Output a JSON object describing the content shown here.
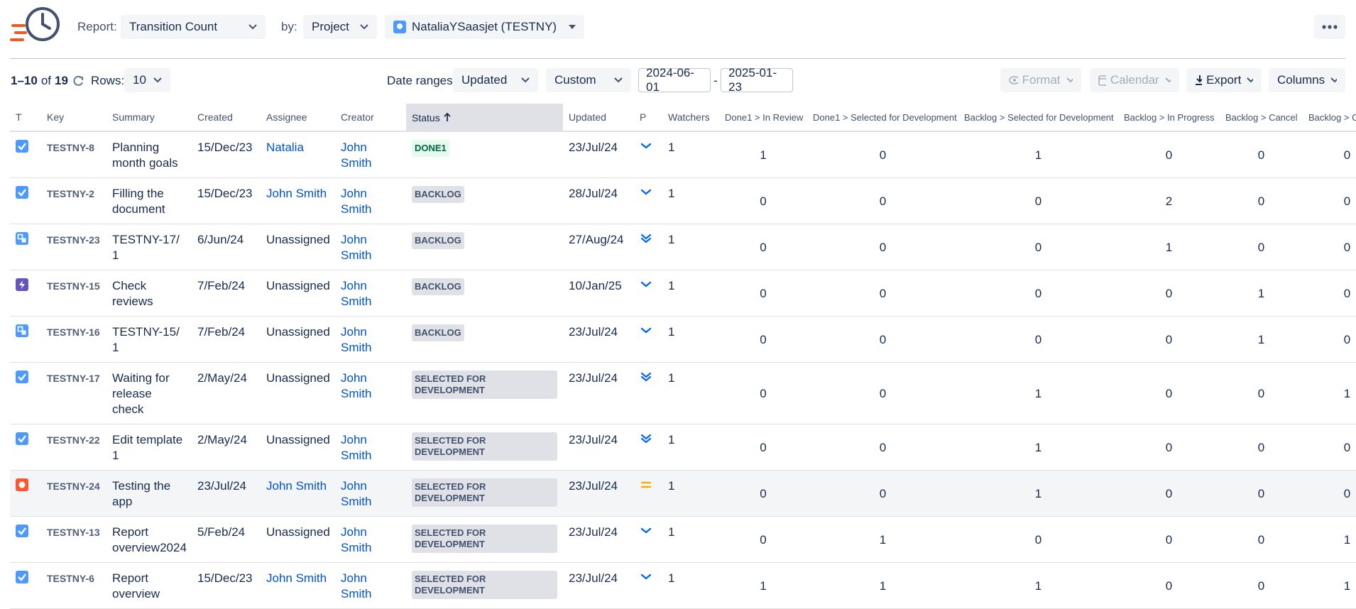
{
  "header": {
    "report_label": "Report:",
    "report_value": "Transition Count",
    "by_label": "by:",
    "by_value": "Project",
    "project": "NataliaYSaasjet (TESTNY)"
  },
  "toolbar": {
    "range": "1–10",
    "of": "of",
    "total": "19",
    "rows_label": "Rows:",
    "rows_value": "10",
    "date_ranges_label": "Date ranges:",
    "date_field": "Updated",
    "date_mode": "Custom",
    "date_from": "2024-06-01",
    "date_sep": "-",
    "date_to": "2025-01-23",
    "format": "Format",
    "calendar": "Calendar",
    "export": "Export",
    "columns": "Columns"
  },
  "table": {
    "columns": [
      "T",
      "Key",
      "Summary",
      "Created",
      "Assignee",
      "Creator",
      "Status",
      "Updated",
      "P",
      "Watchers",
      "Done1 > In Review",
      "Done1 > Selected for Development",
      "Backlog > Selected for Development",
      "Backlog > In Progress",
      "Backlog > Cancel",
      "Backlog > C"
    ],
    "rows": [
      [
        "TESTNY-8",
        "Planning month goals",
        "15/Dec/23",
        "Natalia",
        "John Smith",
        "DONE1",
        "23/Jul/24",
        "1",
        "1",
        "0",
        "1",
        "0",
        "0",
        "0"
      ],
      [
        "TESTNY-2",
        "Filling the document",
        "15/Dec/23",
        "John Smith",
        "John Smith",
        "BACKLOG",
        "28/Jul/24",
        "1",
        "0",
        "0",
        "0",
        "2",
        "0",
        "0"
      ],
      [
        "TESTNY-23",
        "TESTNY-17/ 1",
        "6/Jun/24",
        "Unassigned",
        "John Smith",
        "BACKLOG",
        "27/Aug/24",
        "1",
        "0",
        "0",
        "0",
        "1",
        "0",
        "0"
      ],
      [
        "TESTNY-15",
        "Check reviews",
        "7/Feb/24",
        "Unassigned",
        "John Smith",
        "BACKLOG",
        "10/Jan/25",
        "1",
        "0",
        "0",
        "0",
        "0",
        "1",
        "0"
      ],
      [
        "TESTNY-16",
        "TESTNY-15/ 1",
        "7/Feb/24",
        "Unassigned",
        "John Smith",
        "BACKLOG",
        "23/Jul/24",
        "1",
        "0",
        "0",
        "0",
        "0",
        "1",
        "0"
      ],
      [
        "TESTNY-17",
        "Waiting for release check",
        "2/May/24",
        "Unassigned",
        "John Smith",
        "SELECTED FOR DEVELOPMENT",
        "23/Jul/24",
        "1",
        "0",
        "0",
        "1",
        "0",
        "0",
        "1"
      ],
      [
        "TESTNY-22",
        "Edit template 1",
        "2/May/24",
        "Unassigned",
        "John Smith",
        "SELECTED FOR DEVELOPMENT",
        "23/Jul/24",
        "1",
        "0",
        "0",
        "1",
        "0",
        "0",
        "0"
      ],
      [
        "TESTNY-24",
        "Testing the app",
        "23/Jul/24",
        "John Smith",
        "John Smith",
        "SELECTED FOR DEVELOPMENT",
        "23/Jul/24",
        "1",
        "0",
        "0",
        "1",
        "0",
        "0",
        "0"
      ],
      [
        "TESTNY-13",
        "Report overview2024",
        "5/Feb/24",
        "Unassigned",
        "John Smith",
        "SELECTED FOR DEVELOPMENT",
        "23/Jul/24",
        "1",
        "0",
        "1",
        "0",
        "0",
        "0",
        "1"
      ],
      [
        "TESTNY-6",
        "Report overview",
        "15/Dec/23",
        "John Smith",
        "John Smith",
        "SELECTED FOR DEVELOPMENT",
        "23/Jul/24",
        "1",
        "1",
        "1",
        "1",
        "0",
        "0",
        "1"
      ]
    ]
  }
}
